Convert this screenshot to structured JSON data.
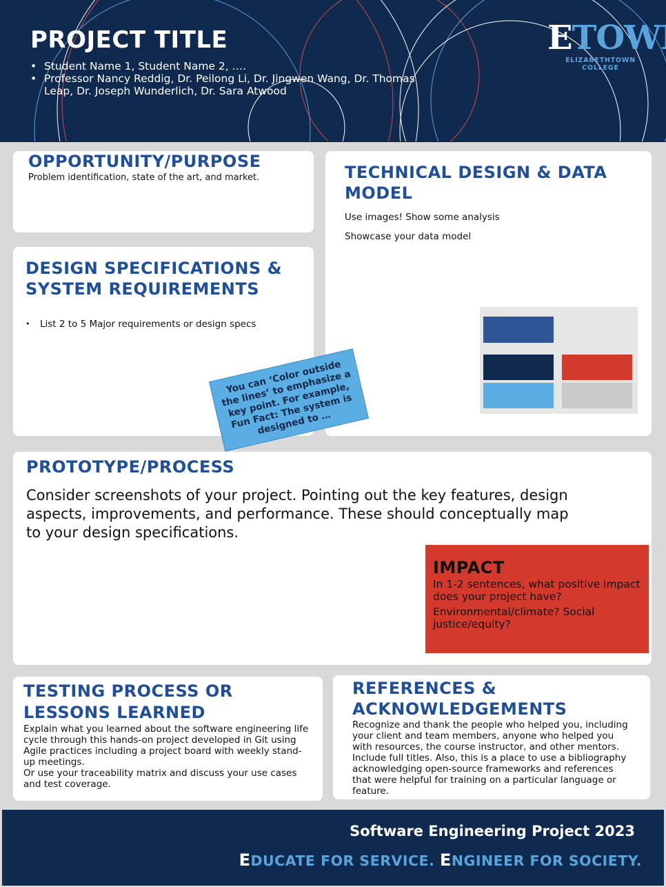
{
  "header": {
    "title": "PROJECT TITLE",
    "authors": [
      "Student Name 1, Student Name 2, ….",
      "Professor Nancy Reddig, Dr. Peilong Li, Dr. Jingwen Wang, Dr. Thomas Leap, Dr. Joseph Wunderlich, Dr. Sara Atwood"
    ],
    "logo": {
      "first_letter": "E",
      "rest": "TOWN",
      "subtitle": "ELIZABETHTOWN COLLEGE"
    }
  },
  "sections": {
    "opportunity": {
      "heading": "OPPORTUNITY/PURPOSE",
      "body": "Problem identification, state of the art, and market."
    },
    "design": {
      "heading": "DESIGN SPECIFICATIONS & SYSTEM REQUIREMENTS",
      "bullets": [
        "List 2 to 5 Major requirements or design specs"
      ]
    },
    "technical": {
      "heading": "TECHNICAL DESIGN & DATA MODEL",
      "lines": [
        "Use images! Show some analysis",
        "Showcase your data model"
      ]
    },
    "prototype": {
      "heading": "PROTOTYPE/PROCESS",
      "body": "Consider screenshots of your project. Pointing out the key features, design aspects, improvements, and performance. These should conceptually map to your design specifications."
    },
    "impact": {
      "heading": "IMPACT",
      "lines": [
        "In 1-2 sentences, what positive impact does your project have?",
        "Environmental/climate? Social justice/equity?"
      ]
    },
    "testing": {
      "heading": "TESTING PROCESS OR LESSONS LEARNED",
      "body": "Explain what you learned about the software engineering life cycle through this hands-on project developed in Git using Agile practices including a project board with weekly stand-up meetings.",
      "body2": "Or use your traceability matrix and discuss your use cases and test coverage."
    },
    "references": {
      "heading": "REFERENCES & ACKNOWLEDGEMENTS",
      "body": "Recognize and thank the people who helped you, including your client and team members, anyone who helped you with resources, the course instructor, and other mentors. Include full titles. Also, this is a place to use a bibliography acknowledging open-source frameworks and references that were helpful for training on a particular language or feature."
    }
  },
  "callout": {
    "text": "You can ‘Color outside the lines’ to emphasize a key point. For example, Fun Fact: The system is designed to …"
  },
  "color_palette_image": {
    "swatches": [
      "#2f5597",
      "#0f2a4e",
      "#d33a2c",
      "#5aaee3",
      "#c9c9c9"
    ]
  },
  "footer": {
    "event": "Software Engineering Project 2023",
    "tagline_parts": [
      "E",
      "DUCATE FOR SERVICE. ",
      "E",
      "NGINEER FOR SOCIETY."
    ]
  },
  "colors": {
    "navy": "#0f2a4e",
    "heading_blue": "#1f4f9a",
    "light_blue": "#5aa4dd",
    "impact_red": "#d33a2c"
  }
}
